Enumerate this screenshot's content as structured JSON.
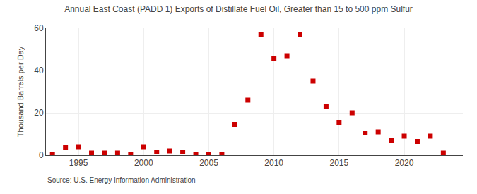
{
  "chart_data": {
    "type": "scatter",
    "title": "Annual East Coast (PADD 1) Exports of Distillate Fuel Oil, Greater than 15 to 500 ppm Sulfur",
    "ylabel": "Thousand Barrels per Day",
    "annotations": [
      "Source: U.S. Energy Information Administration"
    ],
    "x": [
      1993,
      1994,
      1995,
      1996,
      1997,
      1998,
      1999,
      2000,
      2001,
      2002,
      2003,
      2004,
      2005,
      2006,
      2007,
      2008,
      2009,
      2010,
      2011,
      2012,
      2013,
      2014,
      2015,
      2016,
      2017,
      2018,
      2019,
      2020,
      2021,
      2022,
      2023
    ],
    "values": [
      0.5,
      3.5,
      4.0,
      1.0,
      1.0,
      1.0,
      0.5,
      4.0,
      1.5,
      2.0,
      1.5,
      0.5,
      0.3,
      0.5,
      14.5,
      26.0,
      57.0,
      45.5,
      47.0,
      57.0,
      35.0,
      23.0,
      15.5,
      20.0,
      10.5,
      11.0,
      7.0,
      9.0,
      6.5,
      9.0,
      1.0
    ],
    "color": "#cc0000",
    "marker": "square",
    "xlim": [
      1992.5,
      2024.5
    ],
    "ylim": [
      0,
      60
    ],
    "xticks": [
      1995,
      2000,
      2005,
      2010,
      2015,
      2020
    ],
    "yticks": [
      0,
      20,
      40,
      60
    ],
    "grid": true
  }
}
